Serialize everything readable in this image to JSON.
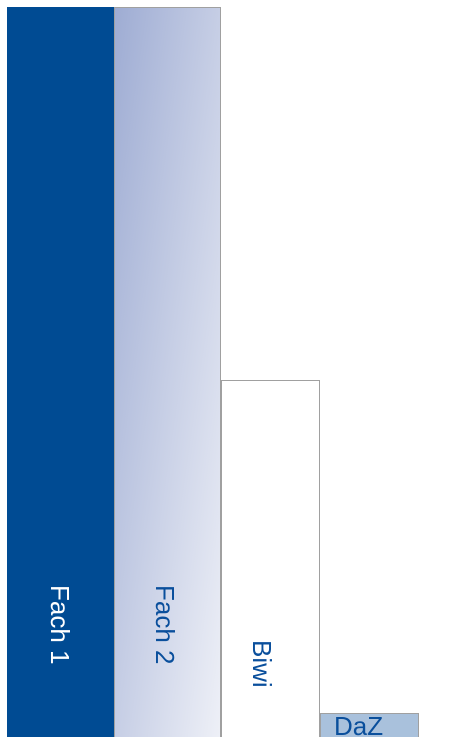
{
  "columns": [
    {
      "label": "Fach 1"
    },
    {
      "label": "Fach 2"
    },
    {
      "label": "Biwi"
    },
    {
      "label": "DaZ"
    }
  ]
}
